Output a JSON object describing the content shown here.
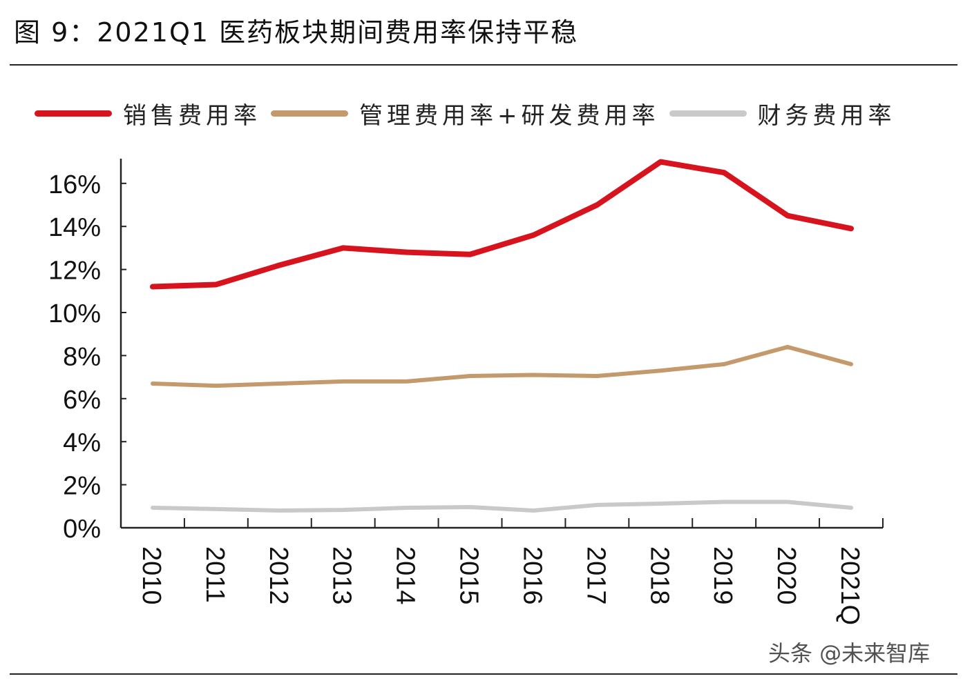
{
  "title": "图 9：2021Q1 医药板块期间费用率保持平稳",
  "watermark": "头条 @未来智库",
  "chart_data": {
    "type": "line",
    "title": "图 9：2021Q1 医药板块期间费用率保持平稳",
    "categories": [
      "2010",
      "2011",
      "2012",
      "2013",
      "2014",
      "2015",
      "2016",
      "2017",
      "2018",
      "2019",
      "2020",
      "2021Q"
    ],
    "ylim": [
      0,
      17
    ],
    "yticks": [
      "0%",
      "2%",
      "4%",
      "6%",
      "8%",
      "10%",
      "12%",
      "14%",
      "16%"
    ],
    "ytick_values": [
      0,
      2,
      4,
      6,
      8,
      10,
      12,
      14,
      16
    ],
    "grid": false,
    "legend_position": "top",
    "series": [
      {
        "name": "销售费用率",
        "color": "#d7131d",
        "values": [
          11.2,
          11.3,
          12.2,
          13.0,
          12.8,
          12.7,
          13.6,
          15.0,
          17.0,
          16.5,
          14.5,
          13.9
        ]
      },
      {
        "name": "管理费用率+研发费用率",
        "color": "#c49a6c",
        "values": [
          6.7,
          6.6,
          6.7,
          6.8,
          6.8,
          7.05,
          7.1,
          7.05,
          7.3,
          7.6,
          8.4,
          7.6
        ]
      },
      {
        "name": "财务费用率",
        "color": "#c9c9c9",
        "values": [
          0.93,
          0.87,
          0.8,
          0.83,
          0.93,
          0.96,
          0.8,
          1.06,
          1.12,
          1.2,
          1.2,
          0.93
        ]
      }
    ]
  }
}
